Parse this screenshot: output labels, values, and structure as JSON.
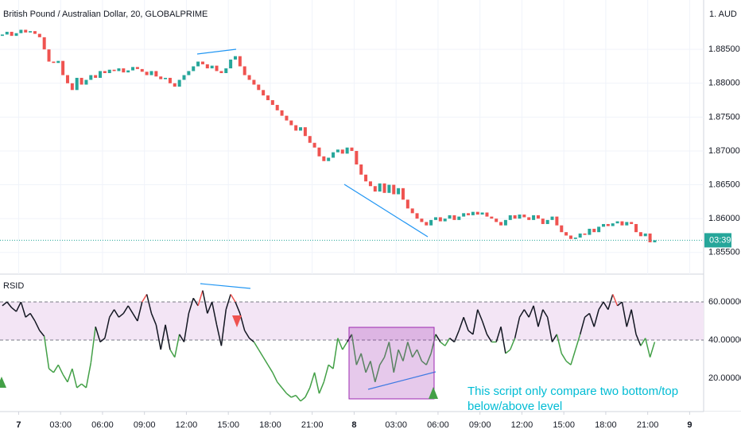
{
  "chart_data": [
    {
      "type": "candlestick",
      "title": "British Pound / Australian Dollar, 20, GLOBALPRIME",
      "currency_label": "1. AUD",
      "countdown": "03:39",
      "up_color": "#26a69a",
      "down_color": "#ef5350",
      "grid": true,
      "xlim": [
        -0.5,
        150.5
      ],
      "ylim": [
        1.8518,
        1.8923
      ],
      "yticks": [
        {
          "value": 1.855,
          "label": "1.85500"
        },
        {
          "value": 1.86,
          "label": "1.86000"
        },
        {
          "value": 1.865,
          "label": "1.86500"
        },
        {
          "value": 1.87,
          "label": "1.87000"
        },
        {
          "value": 1.875,
          "label": "1.87500"
        },
        {
          "value": 1.88,
          "label": "1.88000"
        },
        {
          "value": 1.885,
          "label": "1.88500"
        }
      ],
      "open": [
        1.887,
        1.8872,
        1.8876,
        1.887,
        1.8874,
        1.8879,
        1.8875,
        1.8877,
        1.8873,
        1.8868,
        1.885,
        1.8832,
        1.883,
        1.8833,
        1.8812,
        1.88,
        1.879,
        1.8808,
        1.8798,
        1.8805,
        1.8812,
        1.8808,
        1.8818,
        1.8815,
        1.882,
        1.8818,
        1.8822,
        1.8816,
        1.8819,
        1.8824,
        1.8821,
        1.8817,
        1.8812,
        1.8818,
        1.881,
        1.8806,
        1.8808,
        1.88,
        1.8795,
        1.8805,
        1.8812,
        1.8818,
        1.8825,
        1.8832,
        1.8828,
        1.8822,
        1.8826,
        1.8818,
        1.8815,
        1.8822,
        1.8835,
        1.884,
        1.8825,
        1.8812,
        1.8805,
        1.8798,
        1.879,
        1.8782,
        1.8775,
        1.8768,
        1.876,
        1.8752,
        1.8745,
        1.8738,
        1.873,
        1.8735,
        1.8722,
        1.8712,
        1.8705,
        1.8692,
        1.8685,
        1.869,
        1.8698,
        1.8702,
        1.8696,
        1.8705,
        1.87,
        1.868,
        1.8665,
        1.8655,
        1.8648,
        1.864,
        1.8652,
        1.8638,
        1.865,
        1.8636,
        1.8645,
        1.8628,
        1.8615,
        1.8608,
        1.86,
        1.8595,
        1.859,
        1.8598,
        1.8602,
        1.8596,
        1.86,
        1.8605,
        1.8598,
        1.8603,
        1.8608,
        1.8605,
        1.861,
        1.8606,
        1.8609,
        1.8603,
        1.86,
        1.8595,
        1.859,
        1.8598,
        1.8605,
        1.86,
        1.8606,
        1.8602,
        1.8598,
        1.8605,
        1.86,
        1.8592,
        1.8598,
        1.8603,
        1.859,
        1.858,
        1.8575,
        1.857,
        1.8572,
        1.8578,
        1.8576,
        1.8585,
        1.858,
        1.8588,
        1.8592,
        1.8589,
        1.8593,
        1.8596,
        1.859,
        1.8595,
        1.8592,
        1.858,
        1.8574,
        1.8578,
        1.8565
      ],
      "close": [
        1.8872,
        1.8876,
        1.887,
        1.8874,
        1.8879,
        1.8875,
        1.8877,
        1.8873,
        1.8868,
        1.885,
        1.8832,
        1.883,
        1.8833,
        1.8812,
        1.88,
        1.879,
        1.8808,
        1.8798,
        1.8805,
        1.8812,
        1.8808,
        1.8818,
        1.8815,
        1.882,
        1.8818,
        1.8822,
        1.8816,
        1.8819,
        1.8824,
        1.8821,
        1.8817,
        1.8812,
        1.8818,
        1.881,
        1.8806,
        1.8808,
        1.88,
        1.8795,
        1.8805,
        1.8812,
        1.8818,
        1.8825,
        1.8832,
        1.8828,
        1.8822,
        1.8826,
        1.8818,
        1.8815,
        1.8822,
        1.8835,
        1.884,
        1.8825,
        1.8812,
        1.8805,
        1.8798,
        1.879,
        1.8782,
        1.8775,
        1.8768,
        1.876,
        1.8752,
        1.8745,
        1.8738,
        1.873,
        1.8735,
        1.8722,
        1.8712,
        1.8705,
        1.8692,
        1.8685,
        1.869,
        1.8698,
        1.8702,
        1.8696,
        1.8705,
        1.87,
        1.868,
        1.8665,
        1.8655,
        1.8648,
        1.864,
        1.8652,
        1.8638,
        1.865,
        1.8636,
        1.8645,
        1.8628,
        1.8615,
        1.8608,
        1.86,
        1.8595,
        1.859,
        1.8598,
        1.8602,
        1.8596,
        1.86,
        1.8605,
        1.8598,
        1.8603,
        1.8608,
        1.8605,
        1.861,
        1.8606,
        1.8609,
        1.8603,
        1.86,
        1.8595,
        1.859,
        1.8598,
        1.8605,
        1.86,
        1.8606,
        1.8602,
        1.8598,
        1.8605,
        1.86,
        1.8592,
        1.8598,
        1.8603,
        1.859,
        1.858,
        1.8575,
        1.857,
        1.8572,
        1.8578,
        1.8576,
        1.8585,
        1.858,
        1.8588,
        1.8592,
        1.8589,
        1.8593,
        1.8596,
        1.859,
        1.8595,
        1.8592,
        1.858,
        1.8574,
        1.8578,
        1.8565,
        1.8568
      ]
    },
    {
      "type": "line",
      "title": "RSID",
      "xlim": [
        -0.5,
        150.5
      ],
      "ylim": [
        2.5,
        74.6
      ],
      "yticks": [
        {
          "value": 20,
          "label": "20.00000"
        },
        {
          "value": 40,
          "label": "40.00000"
        },
        {
          "value": 60,
          "label": "60.00000"
        }
      ],
      "lower_level": 40,
      "upper_level": 60,
      "band_color": "#f3e5f5",
      "above_color": "#ef5350",
      "middle_color": "#131722",
      "below_color": "#43a047",
      "xticks": [
        {
          "value": 3.5,
          "label": "7"
        },
        {
          "value": 12.5,
          "label": "03:00"
        },
        {
          "value": 21.5,
          "label": "06:00"
        },
        {
          "value": 30.5,
          "label": "09:00"
        },
        {
          "value": 39.5,
          "label": "12:00"
        },
        {
          "value": 48.5,
          "label": "15:00"
        },
        {
          "value": 57.5,
          "label": "18:00"
        },
        {
          "value": 66.5,
          "label": "21:00"
        },
        {
          "value": 75.5,
          "label": "8"
        },
        {
          "value": 84.5,
          "label": "03:00"
        },
        {
          "value": 93.5,
          "label": "06:00"
        },
        {
          "value": 102.5,
          "label": "09:00"
        },
        {
          "value": 111.5,
          "label": "12:00"
        },
        {
          "value": 120.5,
          "label": "15:00"
        },
        {
          "value": 129.5,
          "label": "18:00"
        },
        {
          "value": 138.5,
          "label": "21:00"
        },
        {
          "value": 147.5,
          "label": "9"
        }
      ],
      "values": [
        58,
        60,
        57,
        55,
        60,
        52,
        54,
        50,
        45,
        42,
        25,
        23,
        27,
        22,
        18,
        25,
        15,
        17,
        15,
        28,
        47,
        39,
        41,
        52,
        56,
        52,
        54,
        58,
        54,
        50,
        60,
        64,
        54,
        48,
        35,
        48,
        35,
        31,
        43,
        39,
        54,
        62,
        58,
        66,
        54,
        60,
        48,
        37,
        56,
        64,
        60,
        54,
        45,
        41,
        39,
        35,
        31,
        27,
        23,
        18,
        15,
        12,
        10,
        11,
        8,
        10,
        15,
        23,
        12,
        18,
        27,
        25,
        41,
        35,
        39,
        43,
        27,
        33,
        23,
        29,
        18,
        27,
        31,
        39,
        23,
        35,
        29,
        39,
        31,
        35,
        29,
        27,
        33,
        43,
        39,
        37,
        41,
        39,
        45,
        52,
        45,
        43,
        56,
        50,
        43,
        39,
        39,
        47,
        33,
        35,
        41,
        52,
        56,
        52,
        58,
        47,
        56,
        52,
        39,
        43,
        33,
        29,
        27,
        35,
        43,
        52,
        54,
        47,
        56,
        60,
        56,
        64,
        58,
        60,
        47,
        56,
        43,
        37,
        41,
        31,
        39
      ],
      "annotations": [
        "This script only compare two bottom/top",
        "below/above level"
      ]
    }
  ]
}
